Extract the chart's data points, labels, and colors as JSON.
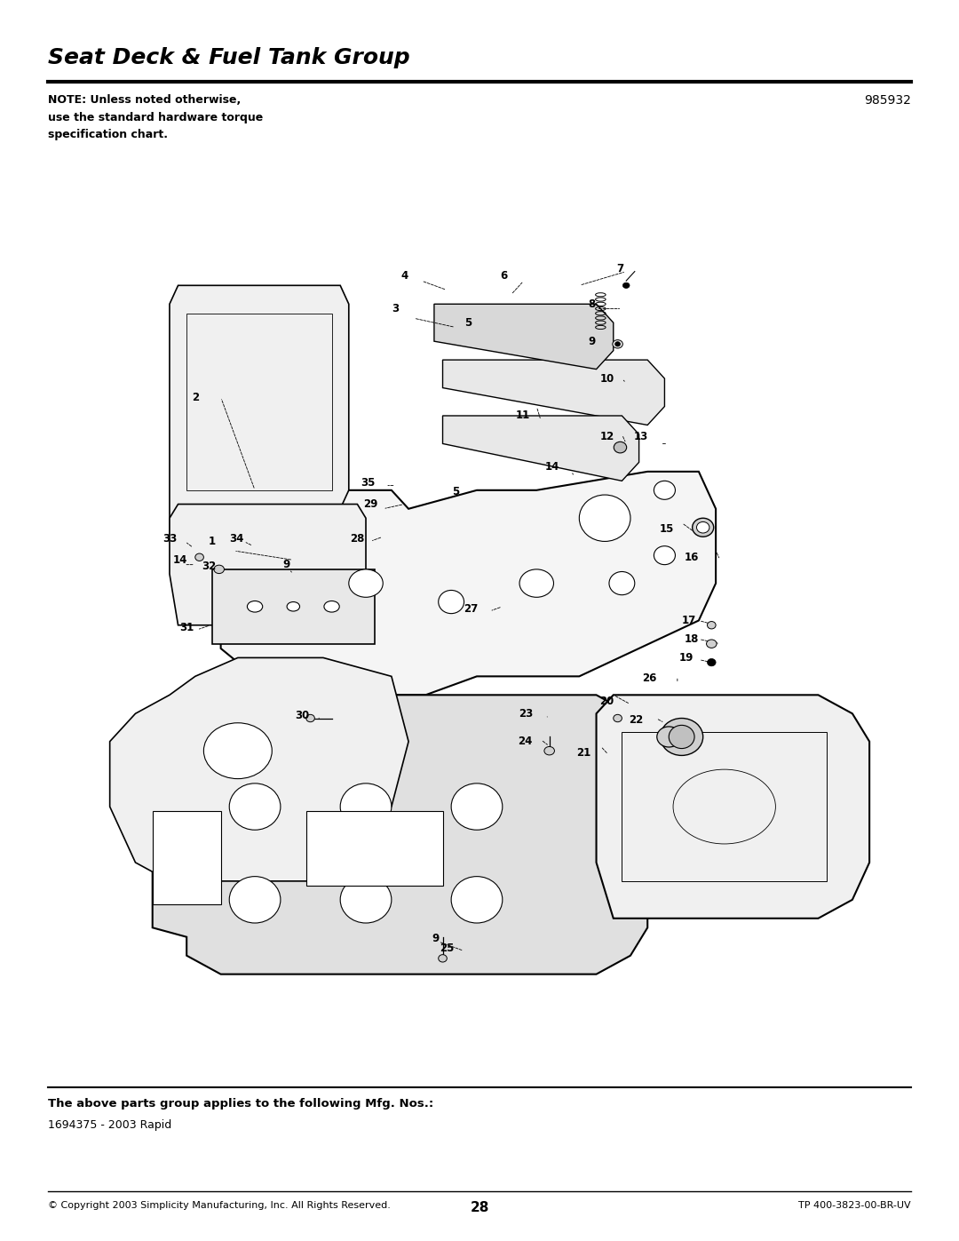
{
  "title": "Seat Deck & Fuel Tank Group",
  "part_number": "985932",
  "note_line1": "NOTE: Unless noted otherwise,",
  "note_line2": "use the standard hardware torque",
  "note_line3": "specification chart.",
  "footer_left": "© Copyright 2003 Simplicity Manufacturing, Inc. All Rights Reserved.",
  "footer_center": "28",
  "footer_right": "TP 400-3823-00-BR-UV",
  "applies_bold": "The above parts group applies to the following Mfg. Nos.:",
  "applies_normal": "1694375 - 2003 Rapid",
  "bg_color": "#ffffff",
  "text_color": "#000000",
  "title_fontsize": 18,
  "note_fontsize": 9,
  "footer_fontsize": 9
}
